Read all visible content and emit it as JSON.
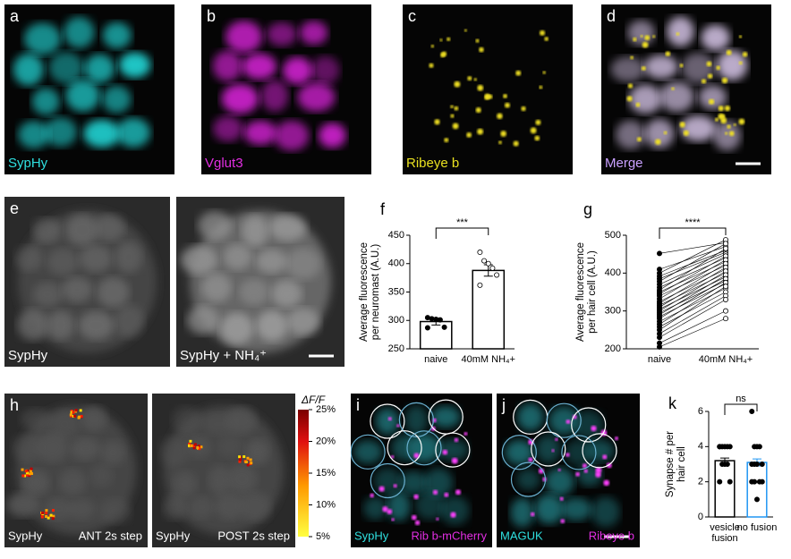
{
  "images": [
    {
      "label": "a",
      "captions": [
        {
          "text": "SypHy",
          "color": "#2fe0e0"
        }
      ]
    },
    {
      "label": "b",
      "captions": [
        {
          "text": "Vglut3",
          "color": "#e22ee2"
        }
      ]
    },
    {
      "label": "c",
      "captions": [
        {
          "text": "Ribeye b",
          "color": "#e8e020"
        }
      ]
    },
    {
      "label": "d",
      "captions": [
        {
          "text": "Merge",
          "color": "#c9a0ff"
        }
      ]
    },
    {
      "label": "e",
      "captions": [
        {
          "text": "SypHy",
          "color": "#ffffff"
        }
      ]
    },
    {
      "label": "",
      "captions": [
        {
          "text": "SypHy + NH₄⁺",
          "color": "#ffffff"
        }
      ]
    },
    {
      "label": "h",
      "captions": [
        {
          "text": "SypHy",
          "color": "#ffffff"
        },
        {
          "text": "ANT  2s step",
          "color": "#ffffff"
        }
      ]
    },
    {
      "label": "",
      "captions": [
        {
          "text": "SypHy",
          "color": "#ffffff"
        },
        {
          "text": "POST 2s step",
          "color": "#ffffff"
        }
      ]
    },
    {
      "label": "i",
      "captions": [
        {
          "text": "SypHy",
          "color": "#2fe0e0"
        },
        {
          "text": "Rib b-mCherry",
          "color": "#e22ee2"
        }
      ]
    },
    {
      "label": "j",
      "captions": [
        {
          "text": "MAGUK",
          "color": "#2fe0e0"
        },
        {
          "text": "Ribeye b",
          "color": "#e22ee2"
        }
      ]
    }
  ],
  "colorbar": {
    "title": "ΔF/F",
    "lim": [
      5,
      25
    ],
    "ticks": [
      {
        "value": 25,
        "label": "25%"
      },
      {
        "value": 20,
        "label": "20%"
      },
      {
        "value": 15,
        "label": "15%"
      },
      {
        "value": 10,
        "label": "10%"
      },
      {
        "value": 5,
        "label": "5%"
      }
    ]
  },
  "chart_data": [
    {
      "type": "bar",
      "panel": "f",
      "ylabel": [
        "Average fluorescence",
        "per neuromast (A.U.)"
      ],
      "categories": [
        "naive",
        "40mM NH₄+"
      ],
      "values": [
        298,
        388
      ],
      "errors": [
        6,
        10
      ],
      "points": [
        [
          305,
          303,
          302,
          301,
          288,
          287
        ],
        [
          420,
          405,
          400,
          392,
          380,
          362
        ]
      ],
      "point_fill": [
        "#000000",
        "#ffffff"
      ],
      "bar_color": [
        "#000000",
        "#000000"
      ],
      "ylim": [
        250,
        450
      ],
      "yticks": [
        250,
        300,
        350,
        400,
        450
      ],
      "significance": "***"
    },
    {
      "type": "paired",
      "panel": "g",
      "ylabel": [
        "Average fluorescence",
        "per hair cell (A.U.)"
      ],
      "categories": [
        "naive",
        "40mM NH₄+"
      ],
      "points": [
        [
          452,
          410,
          400,
          392,
          385,
          378,
          370,
          362,
          355,
          350,
          345,
          340,
          332,
          325,
          320,
          315,
          310,
          305,
          300,
          295,
          290,
          285,
          280,
          272,
          265,
          258,
          250,
          240,
          230,
          215,
          205
        ],
        [
          480,
          470,
          488,
          460,
          455,
          478,
          450,
          440,
          465,
          430,
          445,
          420,
          435,
          410,
          425,
          400,
          415,
          390,
          405,
          380,
          395,
          372,
          385,
          360,
          375,
          350,
          365,
          340,
          330,
          300,
          280
        ]
      ],
      "point_fill": [
        "#000000",
        "#ffffff"
      ],
      "ylim": [
        200,
        500
      ],
      "yticks": [
        200,
        300,
        400,
        500
      ],
      "significance": "****"
    },
    {
      "type": "bar",
      "panel": "k",
      "ylabel": [
        "Synapse # per",
        "hair cell"
      ],
      "categories": [
        "vesicle fusion",
        "no fusion"
      ],
      "values": [
        3.2,
        3.1
      ],
      "errors": [
        0.15,
        0.2
      ],
      "points": [
        [
          4,
          4,
          4,
          4,
          4,
          4,
          3,
          3,
          3,
          2,
          2
        ],
        [
          6,
          4,
          4,
          4,
          3,
          3,
          3,
          3,
          2,
          2,
          2,
          2,
          1
        ]
      ],
      "point_fill": [
        "#000000",
        "#000000"
      ],
      "bar_color": [
        "#000000",
        "#2196f3"
      ],
      "ylim": [
        0,
        6
      ],
      "yticks": [
        0,
        2,
        4,
        6
      ],
      "significance": "ns"
    }
  ]
}
